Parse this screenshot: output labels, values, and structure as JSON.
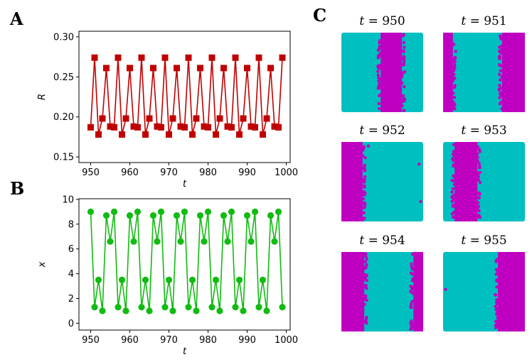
{
  "panels": {
    "a": "A",
    "b": "B",
    "c": "C"
  },
  "colors": {
    "red": "#c00000",
    "green": "#11bb11",
    "cyan": "#00bfc0",
    "magenta": "#c000c0"
  },
  "chart_data": [
    {
      "type": "line",
      "panel": "A",
      "xlabel": "t",
      "ylabel": "R",
      "xlim": [
        947,
        1001
      ],
      "ylim": [
        0.143,
        0.307
      ],
      "xticks": [
        950,
        960,
        970,
        980,
        990,
        1000
      ],
      "yticks": [
        0.15,
        0.2,
        0.25,
        0.3
      ],
      "ytick_labels": [
        "0.15",
        "0.20",
        "0.25",
        "0.30"
      ],
      "marker": "square",
      "x": [
        950,
        951,
        952,
        953,
        954,
        955,
        956,
        957,
        958,
        959,
        960,
        961,
        962,
        963,
        964,
        965,
        966,
        967,
        968,
        969,
        970,
        971,
        972,
        973,
        974,
        975,
        976,
        977,
        978,
        979,
        980,
        981,
        982,
        983,
        984,
        985,
        986,
        987,
        988,
        989,
        990,
        991,
        992,
        993,
        994,
        995,
        996,
        997,
        998,
        999
      ],
      "y": [
        0.187,
        0.274,
        0.178,
        0.198,
        0.261,
        0.188,
        0.187,
        0.274,
        0.178,
        0.198,
        0.261,
        0.188,
        0.187,
        0.274,
        0.178,
        0.198,
        0.261,
        0.188,
        0.187,
        0.274,
        0.178,
        0.198,
        0.261,
        0.188,
        0.187,
        0.274,
        0.178,
        0.198,
        0.261,
        0.188,
        0.187,
        0.274,
        0.178,
        0.198,
        0.261,
        0.188,
        0.187,
        0.274,
        0.178,
        0.198,
        0.261,
        0.188,
        0.187,
        0.274,
        0.178,
        0.198,
        0.261,
        0.188,
        0.187,
        0.274
      ]
    },
    {
      "type": "line",
      "panel": "B",
      "xlabel": "t",
      "ylabel": "x",
      "xlim": [
        947,
        1001
      ],
      "ylim": [
        -0.55,
        10.05
      ],
      "xticks": [
        950,
        960,
        970,
        980,
        990,
        1000
      ],
      "yticks": [
        0,
        2,
        4,
        6,
        8,
        10
      ],
      "ytick_labels": [
        "0",
        "2",
        "4",
        "6",
        "8",
        "10"
      ],
      "marker": "circle",
      "x": [
        950,
        951,
        952,
        953,
        954,
        955,
        956,
        957,
        958,
        959,
        960,
        961,
        962,
        963,
        964,
        965,
        966,
        967,
        968,
        969,
        970,
        971,
        972,
        973,
        974,
        975,
        976,
        977,
        978,
        979,
        980,
        981,
        982,
        983,
        984,
        985,
        986,
        987,
        988,
        989,
        990,
        991,
        992,
        993,
        994,
        995,
        996,
        997,
        998,
        999
      ],
      "y": [
        9.0,
        1.3,
        3.5,
        1.0,
        8.7,
        6.6,
        9.0,
        1.3,
        3.5,
        1.0,
        8.7,
        6.6,
        9.0,
        1.3,
        3.5,
        1.0,
        8.7,
        6.6,
        9.0,
        1.3,
        3.5,
        1.0,
        8.7,
        6.6,
        9.0,
        1.3,
        3.5,
        1.0,
        8.7,
        6.6,
        9.0,
        1.3,
        3.5,
        1.0,
        8.7,
        6.6,
        9.0,
        1.3,
        3.5,
        1.0,
        8.7,
        6.6,
        9.0,
        1.3,
        3.5,
        1.0,
        8.7,
        6.6,
        9.0,
        1.3
      ]
    }
  ],
  "snapshots": [
    {
      "label": "t = 950",
      "var": "t",
      "rest": " = 950",
      "bands": [
        [
          0.48,
          0.74
        ]
      ],
      "stray": []
    },
    {
      "label": "t = 951",
      "var": "t",
      "rest": " = 951",
      "bands": [
        [
          0.0,
          0.12
        ],
        [
          0.72,
          1.0
        ]
      ],
      "stray": []
    },
    {
      "label": "t = 952",
      "var": "t",
      "rest": " = 952",
      "bands": [
        [
          0.0,
          0.26
        ]
      ],
      "stray": [
        [
          0.33,
          0.05
        ],
        [
          0.95,
          0.28
        ],
        [
          0.97,
          0.75
        ]
      ]
    },
    {
      "label": "t = 953",
      "var": "t",
      "rest": " = 953",
      "bands": [
        [
          0.14,
          0.42
        ]
      ],
      "stray": [
        [
          0.11,
          0.63
        ]
      ]
    },
    {
      "label": "t = 954",
      "var": "t",
      "rest": " = 954",
      "bands": [
        [
          0.0,
          0.28
        ],
        [
          0.88,
          1.0
        ]
      ],
      "stray": []
    },
    {
      "label": "t = 955",
      "var": "t",
      "rest": " = 955",
      "bands": [
        [
          0.67,
          1.0
        ]
      ],
      "stray": [
        [
          0.03,
          0.47
        ]
      ]
    }
  ]
}
